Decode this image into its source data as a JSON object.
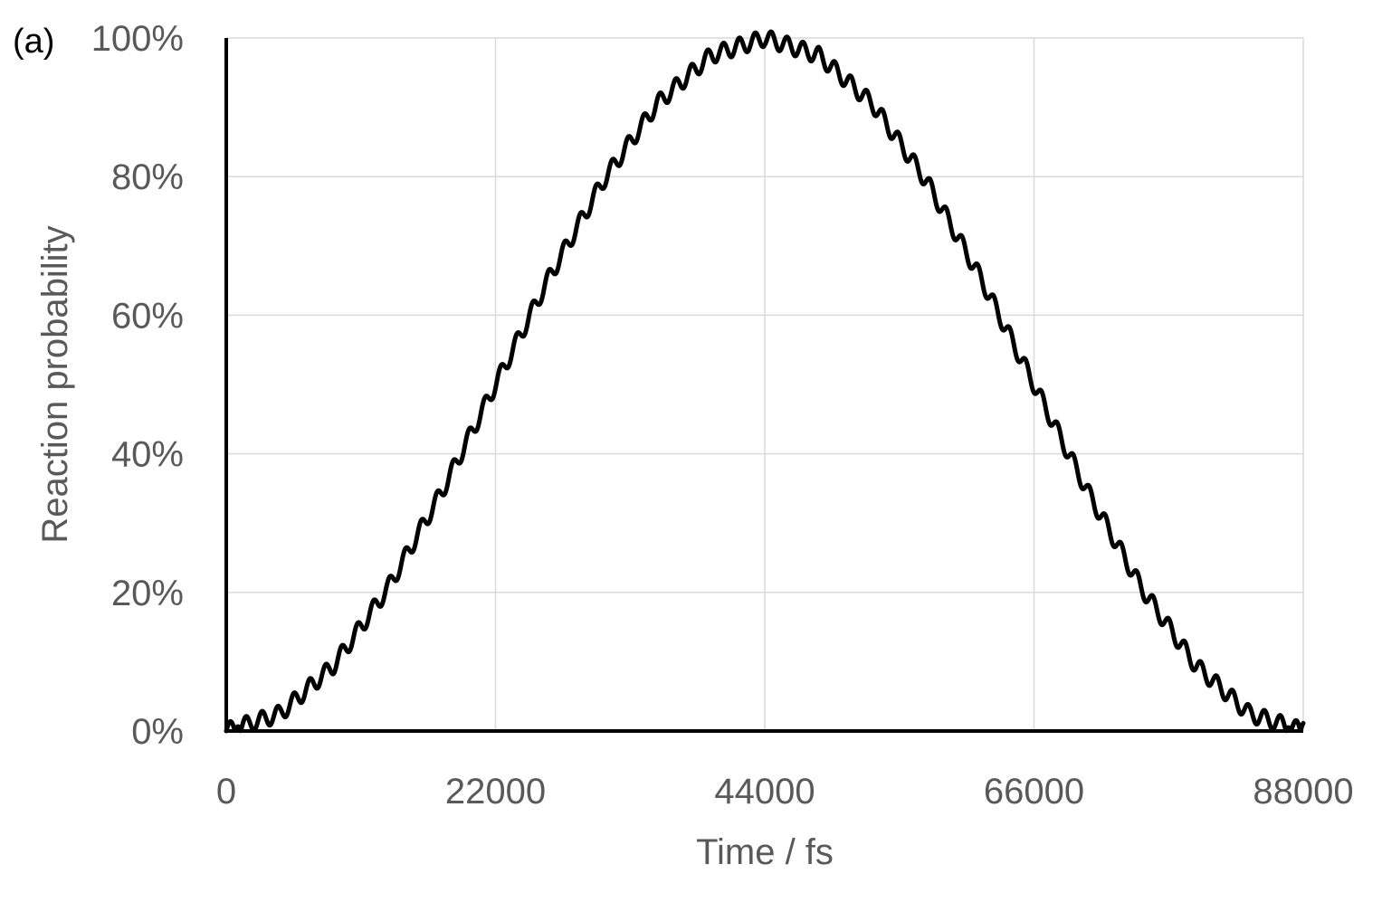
{
  "panel_label": "(a)",
  "colors": {
    "series": "#000000",
    "axis": "#000000",
    "grid": "#d9d9d9",
    "tick_text": "#595959"
  },
  "chart_data": {
    "type": "line",
    "title": "",
    "xlabel": "Time / fs",
    "ylabel": "Reaction probability",
    "xlim": [
      0,
      88000
    ],
    "ylim": [
      0,
      1
    ],
    "x_ticks": [
      0,
      22000,
      44000,
      66000,
      88000
    ],
    "x_tick_labels": [
      "0",
      "22000",
      "44000",
      "66000",
      "88000"
    ],
    "y_ticks": [
      0,
      0.2,
      0.4,
      0.6,
      0.8,
      1.0
    ],
    "y_tick_labels": [
      "0%",
      "20%",
      "40%",
      "60%",
      "80%",
      "100%"
    ],
    "grid": true,
    "legend": "none",
    "series": [
      {
        "x": [
          0,
          4400,
          8800,
          13200,
          17600,
          22000,
          26400,
          30800,
          35200,
          39600,
          44000,
          48400,
          52800,
          57200,
          61600,
          66000,
          70400,
          74800,
          79200,
          83600,
          88000
        ],
        "y": [
          0.0,
          0.025,
          0.095,
          0.206,
          0.345,
          0.5,
          0.655,
          0.794,
          0.905,
          0.975,
          1.0,
          0.975,
          0.905,
          0.794,
          0.655,
          0.5,
          0.345,
          0.206,
          0.095,
          0.025,
          0.0
        ],
        "oscillation": {
          "period": 1300,
          "amplitude": 0.012
        }
      }
    ]
  }
}
